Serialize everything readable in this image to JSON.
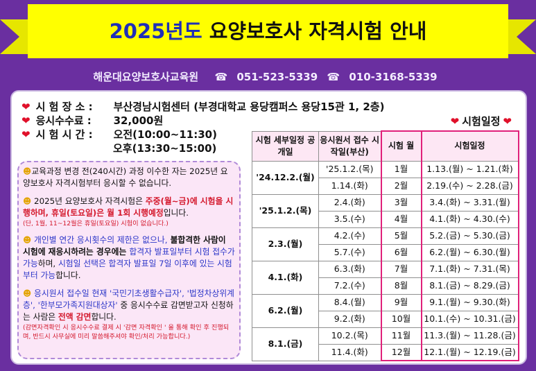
{
  "header": {
    "title_year": "2025년도",
    "title_rest": "요양보호사 자격시험 안내",
    "banner_color": "#ffff00",
    "background_color": "#6a2fa0"
  },
  "contact": {
    "academy": "해운대요양보호사교육원",
    "phone1": "051-523-5339",
    "phone2": "010-3168-5339",
    "phone_icon": "phone-icon"
  },
  "info": {
    "location_label": "시 험 장 소 :",
    "location_value": "부산경남시험센터 (부경대학교 용당캠퍼스 용당15관 1, 2층)",
    "fee_label": "응시수수료 :",
    "fee_value": "32,000원",
    "time_label": "시 험 시 간 :",
    "time_am": "오전(10:00~11:30)",
    "time_pm": "오후(13:30~15:00)",
    "schedule_label": "시험일정"
  },
  "notes": {
    "n1": "교육과정 변경 전(240시간) 과정 이수한 자는 2025년 요양보호사 자격시험부터 응시할 수 없습니다.",
    "n2a": " 2025년 요양보호사 자격시험은 ",
    "n2b": "주중(월~금)에 시험을 시행하며, 휴일(토요일)은 월 1회 시행예정",
    "n2c": "입니다.",
    "n2small": "(단, 1월, 11~12월은 휴일(토요일) 시험이 없습니다.)",
    "n3a": " 개인별 연간 응시횟수의 제한은 없으나,",
    "n3b": " 불합격한 사람이 시험에 재응시하려는 경우에는 ",
    "n3c": "합격자 발표일부터 시험 접수가 가능",
    "n3d": "하며, ",
    "n3e": "시험일 선택은 합격자 발표일 7일 이후에 있는 시험부터 가능",
    "n3f": "합니다.",
    "n4a": " 응시원서 접수일 현재 ",
    "n4b": "'국민기초생활수급자', '법정차상위계층', '한부모가족지원대상자'",
    "n4c": " 중 응시수수료 감면받고자 신청하는 사람은 ",
    "n4d": "전액 감면",
    "n4e": "합니다.",
    "n4small": "(감면자격확인 시 응시수수료 결제 시 '감면 자격확인 ' 을 통해 확인 후 진행되며, 반드시 사무실에 미리 말씀해주셔야 확인/처리 가능합니다.)"
  },
  "table": {
    "headers": [
      "시험 세부일정 공개일",
      "응시원서 접수 시작일(부산)",
      "시험 월",
      "시험일정"
    ],
    "groups": [
      {
        "announce": "'24.12.2.(월)",
        "rows": [
          {
            "start": "'25.1.2.(목)",
            "month": "1월",
            "dates": "1.13.(월) ~ 1.21.(화)"
          },
          {
            "start": "1.14.(화)",
            "month": "2월",
            "dates": "2.19.(수) ~ 2.28.(금)"
          }
        ]
      },
      {
        "announce": "'25.1.2.(목)",
        "rows": [
          {
            "start": "2.4.(화)",
            "month": "3월",
            "dates": "3.4.(화) ~ 3.31.(월)"
          },
          {
            "start": "3.5.(수)",
            "month": "4월",
            "dates": "4.1.(화) ~ 4.30.(수)"
          }
        ]
      },
      {
        "announce": "2.3.(월)",
        "rows": [
          {
            "start": "4.2.(수)",
            "month": "5월",
            "dates": "5.2.(금) ~ 5.30.(금)"
          },
          {
            "start": "5.7.(수)",
            "month": "6월",
            "dates": "6.2.(월) ~ 6.30.(월)"
          }
        ]
      },
      {
        "announce": "4.1.(화)",
        "rows": [
          {
            "start": "6.3.(화)",
            "month": "7월",
            "dates": "7.1.(화) ~ 7.31.(목)"
          },
          {
            "start": "7.2.(수)",
            "month": "8월",
            "dates": "8.1.(금) ~ 8.29.(금)"
          }
        ]
      },
      {
        "announce": "6.2.(월)",
        "rows": [
          {
            "start": "8.4.(월)",
            "month": "9월",
            "dates": "9.1.(월) ~ 9.30.(화)"
          },
          {
            "start": "9.2.(화)",
            "month": "10월",
            "dates": "10.1.(수) ~ 10.31.(금)"
          }
        ]
      },
      {
        "announce": "8.1.(금)",
        "rows": [
          {
            "start": "10.2.(목)",
            "month": "11월",
            "dates": "11.3.(월) ~ 11.28.(금)"
          },
          {
            "start": "11.4.(화)",
            "month": "12월",
            "dates": "12.1.(월) ~ 12.19.(금)"
          }
        ]
      }
    ]
  }
}
